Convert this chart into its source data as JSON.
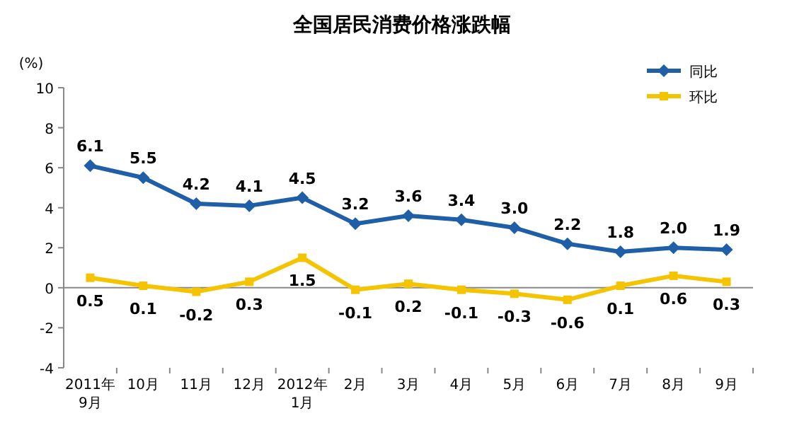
{
  "chart_data": {
    "type": "line",
    "title": "全国居民消费价格涨跌幅",
    "ylabel": "(%)",
    "categories": [
      "2011年\n9月",
      "10月",
      "11月",
      "12月",
      "2012年\n1月",
      "2月",
      "3月",
      "4月",
      "5月",
      "6月",
      "7月",
      "8月",
      "9月"
    ],
    "series": [
      {
        "name": "同比",
        "color": "#1f5fa8",
        "marker": "diamond",
        "values": [
          6.1,
          5.5,
          4.2,
          4.1,
          4.5,
          3.2,
          3.6,
          3.4,
          3.0,
          2.2,
          1.8,
          2.0,
          1.9
        ],
        "value_labels": [
          "6.1",
          "5.5",
          "4.2",
          "4.1",
          "4.5",
          "3.2",
          "3.6",
          "3.4",
          "3.0",
          "2.2",
          "1.8",
          "2.0",
          "1.9"
        ]
      },
      {
        "name": "环比",
        "color": "#f5c400",
        "marker": "square",
        "values": [
          0.5,
          0.1,
          -0.2,
          0.3,
          1.5,
          -0.1,
          0.2,
          -0.1,
          -0.3,
          -0.6,
          0.1,
          0.6,
          0.3
        ],
        "value_labels": [
          "0.5",
          "0.1",
          "-0.2",
          "0.3",
          "1.5",
          "-0.1",
          "0.2",
          "-0.1",
          "-0.3",
          "-0.6",
          "0.1",
          "0.6",
          "0.3"
        ]
      }
    ],
    "ylim": [
      -4,
      10
    ],
    "yticks": [
      -4,
      -2,
      0,
      2,
      4,
      6,
      8,
      10
    ],
    "legend": "top right",
    "line_style": "solid"
  }
}
